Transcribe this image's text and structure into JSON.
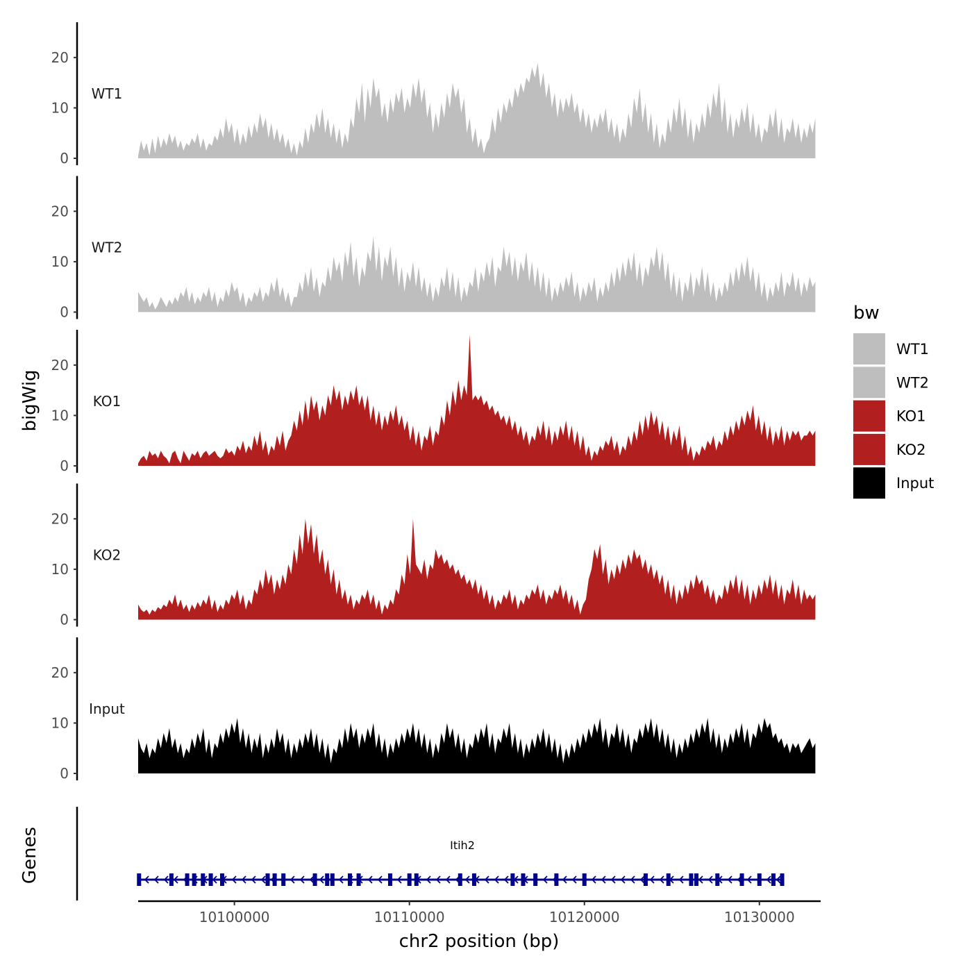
{
  "chart_data": {
    "type": "area",
    "title": "",
    "xlabel": "chr2 position (bp)",
    "ylabel": "bigWig",
    "genes_label": "Genes",
    "xlim": [
      10094500,
      10133500
    ],
    "data_range": [
      10094500,
      10133200
    ],
    "ylim": [
      0,
      27
    ],
    "yticks": [
      0,
      10,
      20
    ],
    "xticks": [
      10100000,
      10110000,
      10120000,
      10130000
    ],
    "xtick_labels": [
      "10100000",
      "10110000",
      "10120000",
      "10130000"
    ],
    "legend": {
      "title": "bw",
      "entries": [
        {
          "name": "WT1",
          "color": "#bebebe"
        },
        {
          "name": "WT2",
          "color": "#bebebe"
        },
        {
          "name": "KO1",
          "color": "#b21f1f"
        },
        {
          "name": "KO2",
          "color": "#b21f1f"
        },
        {
          "name": "Input",
          "color": "#000000"
        }
      ]
    },
    "series": [
      {
        "name": "WT1",
        "color": "#bebebe",
        "values": [
          0.5,
          3.5,
          1.5,
          3,
          0.5,
          4,
          1,
          4.5,
          2,
          4,
          2.5,
          5,
          3,
          4.5,
          2,
          3.5,
          1.5,
          3,
          2.5,
          4,
          3,
          5,
          2,
          4,
          1.5,
          3,
          2.5,
          4.5,
          3.5,
          6,
          4,
          8,
          5,
          7,
          3,
          6,
          2.5,
          5,
          3,
          6.5,
          4,
          7,
          5,
          9,
          6,
          8,
          4,
          7,
          3.5,
          6,
          3,
          5,
          2,
          4,
          1,
          3,
          0.5,
          3.5,
          2,
          6,
          3,
          7,
          5,
          9,
          6,
          10,
          5,
          8,
          4,
          7,
          3,
          6,
          2,
          5,
          3,
          8,
          6,
          12,
          9,
          15,
          7,
          14,
          10,
          16,
          12,
          14,
          8,
          11,
          7,
          12,
          9,
          13,
          11,
          14,
          9,
          12,
          10,
          15,
          12,
          16,
          11,
          14,
          8,
          11,
          5,
          9,
          6,
          11,
          8,
          13,
          10,
          15,
          12,
          14,
          9,
          12,
          5,
          8,
          3,
          6,
          2,
          4,
          1,
          3,
          4,
          8,
          5,
          10,
          7,
          11,
          9,
          12,
          10,
          14,
          12,
          15,
          13,
          16,
          15,
          18,
          16,
          19,
          14,
          17,
          12,
          15,
          10,
          13,
          8,
          12,
          9,
          12,
          10,
          13,
          9,
          11,
          7,
          10,
          6,
          9,
          5,
          8,
          6,
          9,
          7,
          10,
          5,
          8,
          4,
          7,
          3,
          6,
          4,
          9,
          6,
          12,
          9,
          14,
          7,
          11,
          5,
          9,
          3,
          7,
          2,
          5,
          3,
          8,
          5,
          10,
          7,
          12,
          6,
          10,
          4,
          8,
          3,
          7,
          5,
          9,
          6,
          11,
          8,
          13,
          10,
          15,
          7,
          12,
          5,
          9,
          4,
          8,
          6,
          10,
          7,
          11,
          5,
          9,
          4,
          7,
          3,
          6,
          5,
          9,
          6,
          10,
          4,
          8,
          3,
          6,
          5,
          8,
          4,
          7,
          3,
          6,
          4,
          7,
          5,
          8
        ]
      },
      {
        "name": "WT2",
        "color": "#bebebe",
        "values": [
          4,
          3,
          2,
          3,
          1,
          2,
          0.5,
          1.5,
          3,
          2,
          1,
          2.5,
          1.5,
          3,
          2,
          4,
          3,
          5,
          2,
          4,
          1.5,
          3,
          2,
          4,
          3,
          5,
          2,
          4,
          1,
          3,
          2,
          4.5,
          3,
          6,
          4,
          5,
          2,
          4,
          1,
          3,
          2,
          4,
          3,
          5,
          2,
          4,
          3,
          6,
          4,
          7,
          3,
          5,
          2,
          4,
          1,
          3,
          3,
          6,
          4,
          8,
          5,
          9,
          4,
          7,
          3,
          6,
          5,
          9,
          6,
          11,
          8,
          10,
          6,
          12,
          9,
          14,
          7,
          11,
          5,
          9,
          7,
          12,
          10,
          15,
          8,
          13,
          6,
          11,
          9,
          13,
          7,
          11,
          5,
          9,
          4,
          8,
          6,
          10,
          5,
          9,
          4,
          7,
          3,
          6,
          2,
          5,
          3,
          7,
          5,
          9,
          4,
          8,
          3,
          7,
          2,
          5,
          3,
          6,
          5,
          9,
          4,
          8,
          6,
          10,
          7,
          11,
          5,
          9,
          8,
          13,
          9,
          12,
          7,
          11,
          6,
          10,
          8,
          12,
          6,
          10,
          5,
          9,
          4,
          8,
          3,
          7,
          2,
          5,
          3,
          6,
          4,
          7,
          5,
          8,
          3,
          6,
          2,
          5,
          3,
          6,
          4,
          7,
          2,
          5,
          3,
          6,
          4,
          8,
          5,
          9,
          6,
          10,
          7,
          11,
          8,
          12,
          6,
          10,
          5,
          9,
          7,
          11,
          9,
          13,
          8,
          12,
          6,
          10,
          4,
          8,
          3,
          7,
          2,
          6,
          4,
          8,
          3,
          7,
          5,
          9,
          4,
          8,
          3,
          6,
          2,
          5,
          3,
          6,
          4,
          8,
          5,
          9,
          6,
          10,
          7,
          11,
          6,
          9,
          4,
          8,
          3,
          6,
          2,
          5,
          3,
          6,
          4,
          8,
          3,
          6,
          5,
          8,
          4,
          7,
          3,
          6,
          4,
          7,
          5,
          6
        ]
      },
      {
        "name": "KO1",
        "color": "#b21f1f",
        "values": [
          0.5,
          1.5,
          2,
          1,
          3,
          2,
          2.5,
          1.5,
          3,
          2,
          1.5,
          0.5,
          2.5,
          3,
          1.5,
          0.5,
          3,
          2,
          1,
          2.5,
          2,
          3,
          1.5,
          2.5,
          3,
          2,
          2.5,
          3,
          2,
          1.5,
          2,
          3.5,
          2.5,
          3,
          2,
          4,
          3,
          5,
          2.5,
          4,
          3,
          6,
          4,
          7,
          3,
          5,
          2,
          4,
          3,
          6,
          4,
          7,
          3,
          5,
          6,
          9,
          7,
          11,
          8,
          13,
          9,
          14,
          11,
          13,
          9,
          12,
          10,
          14,
          12,
          16,
          13,
          15,
          11,
          14,
          12,
          15,
          13,
          16,
          12,
          14,
          11,
          14,
          9,
          12,
          8,
          11,
          7,
          10,
          8,
          11,
          9,
          12,
          8,
          10,
          7,
          9,
          5,
          8,
          4,
          7,
          3,
          6,
          5,
          8,
          4,
          7,
          6,
          10,
          8,
          13,
          10,
          15,
          12,
          17,
          13,
          16,
          14,
          26,
          13,
          14,
          13,
          14,
          12,
          13,
          11,
          12,
          10,
          11,
          9,
          10,
          8,
          10,
          7,
          9,
          6,
          8,
          5,
          7,
          4,
          6,
          5,
          8,
          6,
          9,
          5,
          8,
          4,
          7,
          5,
          8,
          6,
          9,
          5,
          8,
          4,
          7,
          3,
          6,
          2,
          4,
          1,
          3,
          2,
          4,
          3,
          5,
          4,
          6,
          3,
          5,
          2,
          4,
          3,
          6,
          4,
          7,
          5,
          9,
          6,
          10,
          7,
          11,
          8,
          10,
          6,
          9,
          5,
          8,
          4,
          7,
          5,
          8,
          3,
          6,
          2,
          4,
          1,
          3,
          2,
          4,
          3,
          5,
          4,
          6,
          3,
          5,
          4,
          7,
          5,
          8,
          6,
          9,
          7,
          10,
          8,
          11,
          9,
          12,
          7,
          10,
          6,
          9,
          5,
          8,
          4,
          7,
          5,
          8,
          4,
          7,
          5,
          7,
          6,
          7,
          5,
          6,
          6,
          7,
          6,
          7
        ]
      },
      {
        "name": "KO2",
        "color": "#b21f1f",
        "values": [
          3,
          2,
          1.5,
          2,
          1,
          2,
          1.5,
          2.5,
          2,
          3,
          2.5,
          4,
          3,
          5,
          2.5,
          4,
          2,
          3,
          1.5,
          3,
          2,
          3.5,
          2.5,
          4,
          3,
          5,
          2,
          4,
          1.5,
          3,
          2,
          4,
          3,
          5,
          4,
          6,
          3,
          5,
          2,
          4,
          3,
          6,
          5,
          8,
          6,
          10,
          7,
          9,
          5,
          8,
          6,
          9,
          7,
          11,
          9,
          14,
          11,
          17,
          13,
          20,
          15,
          19,
          13,
          17,
          11,
          14,
          9,
          12,
          7,
          10,
          5,
          8,
          4,
          6,
          3,
          5,
          2,
          4,
          3,
          5,
          4,
          6,
          3,
          5,
          2,
          4,
          1,
          3,
          2,
          4,
          3,
          6,
          5,
          9,
          7,
          13,
          9,
          20,
          11,
          10,
          9,
          12,
          8,
          11,
          10,
          14,
          12,
          13,
          11,
          12,
          10,
          11,
          9,
          10,
          8,
          9,
          7,
          8,
          6,
          8,
          5,
          7,
          4,
          6,
          3,
          5,
          2,
          4,
          3,
          5,
          4,
          6,
          3,
          5,
          2,
          4,
          3,
          5,
          4,
          6,
          5,
          7,
          4,
          6,
          3,
          5,
          4,
          6,
          5,
          7,
          4,
          6,
          3,
          5,
          2,
          4,
          1,
          3,
          4,
          8,
          10,
          14,
          12,
          15,
          9,
          12,
          7,
          10,
          8,
          11,
          9,
          12,
          10,
          13,
          11,
          14,
          12,
          13,
          10,
          12,
          9,
          11,
          8,
          10,
          7,
          9,
          5,
          8,
          4,
          7,
          3,
          6,
          4,
          7,
          5,
          8,
          6,
          9,
          7,
          8,
          5,
          7,
          4,
          6,
          3,
          5,
          4,
          7,
          5,
          8,
          6,
          9,
          5,
          8,
          4,
          7,
          3,
          6,
          4,
          7,
          5,
          8,
          6,
          9,
          5,
          8,
          4,
          7,
          3,
          6,
          5,
          8,
          4,
          7,
          3,
          6,
          4,
          5,
          4,
          5
        ]
      },
      {
        "name": "Input",
        "color": "#000000",
        "values": [
          7,
          5,
          4,
          6,
          3,
          5,
          4,
          7,
          5,
          8,
          6,
          9,
          5,
          7,
          4,
          6,
          3,
          5,
          4,
          7,
          5,
          8,
          6,
          9,
          4,
          7,
          3,
          6,
          5,
          8,
          6,
          9,
          7,
          10,
          8,
          11,
          6,
          9,
          5,
          8,
          4,
          7,
          5,
          8,
          3,
          6,
          4,
          7,
          5,
          9,
          6,
          8,
          4,
          7,
          3,
          6,
          4,
          7,
          5,
          8,
          6,
          9,
          5,
          8,
          4,
          7,
          3,
          6,
          2,
          5,
          4,
          7,
          5,
          9,
          6,
          10,
          7,
          9,
          5,
          8,
          6,
          9,
          7,
          10,
          5,
          8,
          4,
          7,
          3,
          6,
          4,
          7,
          5,
          8,
          6,
          9,
          7,
          10,
          6,
          9,
          5,
          8,
          4,
          7,
          3,
          6,
          4,
          8,
          6,
          10,
          7,
          9,
          5,
          8,
          4,
          7,
          3,
          6,
          5,
          8,
          6,
          9,
          7,
          10,
          5,
          8,
          4,
          7,
          6,
          9,
          7,
          10,
          5,
          8,
          4,
          7,
          3,
          6,
          4,
          7,
          5,
          8,
          6,
          9,
          5,
          8,
          4,
          7,
          3,
          6,
          2,
          5,
          3,
          6,
          4,
          7,
          5,
          8,
          6,
          9,
          7,
          10,
          8,
          11,
          6,
          9,
          5,
          8,
          7,
          10,
          6,
          9,
          5,
          8,
          4,
          7,
          6,
          9,
          7,
          10,
          8,
          11,
          7,
          10,
          6,
          9,
          5,
          8,
          4,
          7,
          3,
          6,
          4,
          7,
          5,
          8,
          6,
          9,
          7,
          10,
          8,
          11,
          6,
          9,
          5,
          8,
          4,
          7,
          5,
          8,
          6,
          9,
          7,
          10,
          6,
          9,
          5,
          8,
          7,
          10,
          8,
          11,
          9,
          10,
          7,
          8,
          6,
          7,
          5,
          6,
          4,
          6,
          5,
          6,
          4,
          5,
          6,
          7,
          5,
          6
        ]
      }
    ],
    "gene": {
      "name": "Itih2",
      "start": 10094500,
      "end": 10131300,
      "strand": "-",
      "color": "#00008b",
      "exons": [
        10094550,
        10096400,
        10097300,
        10097700,
        10098200,
        10098650,
        10099300,
        10101900,
        10102300,
        10102800,
        10104600,
        10105300,
        10105600,
        10106600,
        10107100,
        10108900,
        10110000,
        10110400,
        10112900,
        10113700,
        10115900,
        10116500,
        10117200,
        10118400,
        10120000,
        10123500,
        10124800,
        10126100,
        10126400,
        10127600,
        10129000,
        10130000,
        10130800,
        10131300
      ]
    }
  }
}
